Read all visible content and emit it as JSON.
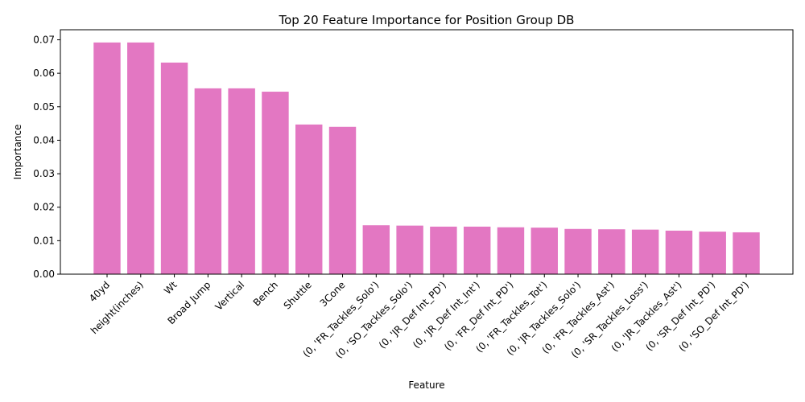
{
  "chart_data": {
    "type": "bar",
    "title": "Top 20 Feature Importance for Position Group DB",
    "xlabel": "Feature",
    "ylabel": "Importance",
    "ylim": [
      0,
      0.073
    ],
    "yticks": [
      "0.00",
      "0.01",
      "0.02",
      "0.03",
      "0.04",
      "0.05",
      "0.06",
      "0.07"
    ],
    "bar_color": "#e377c2",
    "grid": false,
    "legend": "none",
    "categories": [
      "40yd",
      "height(inches)",
      "Wt",
      "Broad Jump",
      "Vertical",
      "Bench",
      "Shuttle",
      "3Cone",
      "(0, 'FR_Tackles_Solo')",
      "(0, 'SO_Tackles_Solo')",
      "(0, 'JR_Def Int_PD')",
      "(0, 'JR_Def Int_Int')",
      "(0, 'FR_Def Int_PD')",
      "(0, 'FR_Tackles_Tot')",
      "(0, 'JR_Tackles_Solo')",
      "(0, 'FR_Tackles_Ast')",
      "(0, 'SR_Tackles_Loss')",
      "(0, 'JR_Tackles_Ast')",
      "(0, 'SR_Def Int_PD')",
      "(0, 'SO_Def Int_PD')"
    ],
    "values": [
      0.0692,
      0.0692,
      0.0632,
      0.0555,
      0.0555,
      0.0545,
      0.0447,
      0.044,
      0.0146,
      0.0145,
      0.0142,
      0.0142,
      0.014,
      0.0139,
      0.0135,
      0.0134,
      0.0133,
      0.013,
      0.0127,
      0.0125
    ]
  }
}
